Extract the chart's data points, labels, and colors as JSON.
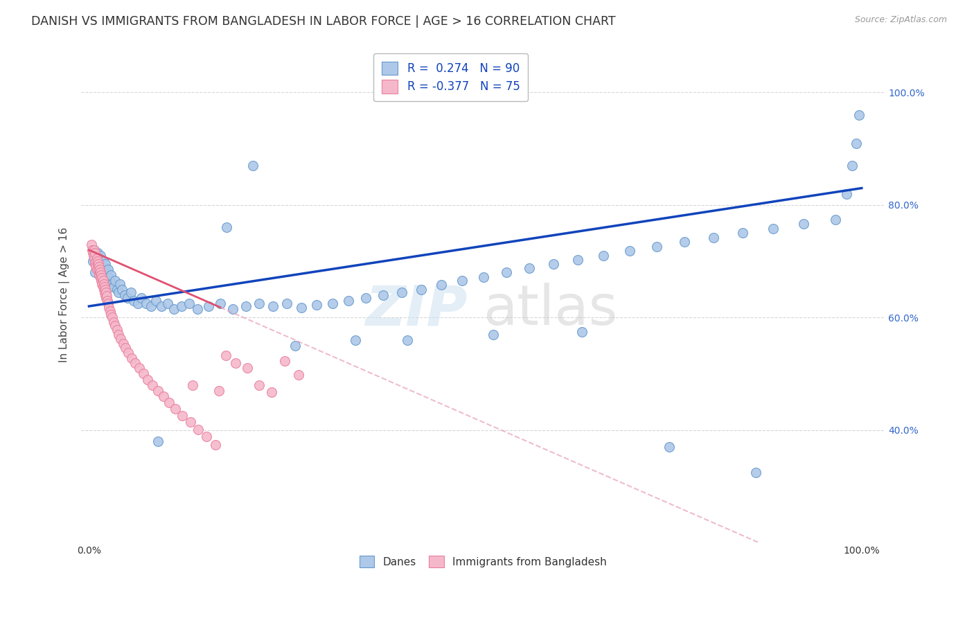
{
  "title": "DANISH VS IMMIGRANTS FROM BANGLADESH IN LABOR FORCE | AGE > 16 CORRELATION CHART",
  "source": "Source: ZipAtlas.com",
  "ylabel": "In Labor Force | Age > 16",
  "ytick_positions": [
    0.4,
    0.6,
    0.8,
    1.0
  ],
  "ytick_labels": [
    "40.0%",
    "60.0%",
    "80.0%",
    "100.0%"
  ],
  "xlim": [
    -0.01,
    1.03
  ],
  "ylim": [
    0.2,
    1.08
  ],
  "legend_label1": "R =  0.274   N = 90",
  "legend_label2": "R = -0.377   N = 75",
  "danes_color": "#adc8e8",
  "danes_edge": "#6699cc",
  "bangladesh_color": "#f5b8cb",
  "bangladesh_edge": "#e8809c",
  "trendline_danes_color": "#1144bb",
  "trendline_bangladesh_solid_color": "#e05070",
  "trendline_bangladesh_dash_color": "#e8a0b8",
  "watermark_zip_color": "#cce0f0",
  "watermark_atlas_color": "#c8c8c8",
  "grid_color": "#cccccc",
  "title_color": "#333333",
  "source_color": "#999999",
  "ylabel_color": "#444444",
  "right_tick_color": "#3366cc",
  "bottom_label_color": "#333333",
  "danes_x": [
    0.005,
    0.007,
    0.008,
    0.009,
    0.01,
    0.011,
    0.012,
    0.013,
    0.014,
    0.015,
    0.015,
    0.016,
    0.017,
    0.018,
    0.019,
    0.02,
    0.021,
    0.022,
    0.023,
    0.025,
    0.026,
    0.027,
    0.028,
    0.03,
    0.032,
    0.034,
    0.036,
    0.038,
    0.04,
    0.043,
    0.046,
    0.05,
    0.054,
    0.058,
    0.063,
    0.068,
    0.074,
    0.08,
    0.087,
    0.094,
    0.102,
    0.11,
    0.12,
    0.13,
    0.14,
    0.155,
    0.17,
    0.186,
    0.203,
    0.22,
    0.238,
    0.256,
    0.275,
    0.295,
    0.315,
    0.336,
    0.358,
    0.381,
    0.405,
    0.43,
    0.456,
    0.483,
    0.511,
    0.54,
    0.57,
    0.601,
    0.633,
    0.666,
    0.7,
    0.735,
    0.771,
    0.808,
    0.846,
    0.885,
    0.925,
    0.966,
    0.98,
    0.988,
    0.993,
    0.997,
    0.212,
    0.345,
    0.178,
    0.089,
    0.267,
    0.412,
    0.523,
    0.638,
    0.751,
    0.863
  ],
  "danes_y": [
    0.7,
    0.72,
    0.68,
    0.71,
    0.695,
    0.715,
    0.7,
    0.685,
    0.705,
    0.69,
    0.71,
    0.695,
    0.675,
    0.7,
    0.685,
    0.69,
    0.695,
    0.675,
    0.68,
    0.685,
    0.67,
    0.665,
    0.675,
    0.66,
    0.655,
    0.665,
    0.65,
    0.645,
    0.66,
    0.65,
    0.64,
    0.635,
    0.645,
    0.63,
    0.625,
    0.635,
    0.625,
    0.62,
    0.63,
    0.62,
    0.625,
    0.615,
    0.62,
    0.625,
    0.615,
    0.62,
    0.625,
    0.615,
    0.62,
    0.625,
    0.62,
    0.625,
    0.618,
    0.622,
    0.625,
    0.63,
    0.635,
    0.64,
    0.645,
    0.65,
    0.658,
    0.665,
    0.672,
    0.68,
    0.688,
    0.695,
    0.703,
    0.71,
    0.718,
    0.726,
    0.734,
    0.742,
    0.75,
    0.758,
    0.766,
    0.774,
    0.82,
    0.87,
    0.91,
    0.96,
    0.87,
    0.56,
    0.76,
    0.38,
    0.55,
    0.56,
    0.57,
    0.575,
    0.37,
    0.325
  ],
  "bangladesh_x": [
    0.003,
    0.004,
    0.005,
    0.006,
    0.007,
    0.007,
    0.008,
    0.008,
    0.009,
    0.009,
    0.01,
    0.01,
    0.011,
    0.011,
    0.012,
    0.012,
    0.013,
    0.013,
    0.014,
    0.014,
    0.015,
    0.015,
    0.016,
    0.016,
    0.017,
    0.017,
    0.018,
    0.018,
    0.019,
    0.019,
    0.02,
    0.02,
    0.021,
    0.021,
    0.022,
    0.022,
    0.023,
    0.024,
    0.025,
    0.026,
    0.027,
    0.028,
    0.03,
    0.032,
    0.034,
    0.036,
    0.038,
    0.041,
    0.044,
    0.047,
    0.051,
    0.055,
    0.06,
    0.065,
    0.07,
    0.076,
    0.082,
    0.089,
    0.096,
    0.104,
    0.112,
    0.121,
    0.131,
    0.141,
    0.152,
    0.164,
    0.177,
    0.19,
    0.205,
    0.22,
    0.236,
    0.253,
    0.271,
    0.134,
    0.168
  ],
  "bangladesh_y": [
    0.73,
    0.72,
    0.715,
    0.71,
    0.705,
    0.72,
    0.695,
    0.715,
    0.7,
    0.69,
    0.685,
    0.705,
    0.695,
    0.7,
    0.685,
    0.695,
    0.675,
    0.69,
    0.68,
    0.685,
    0.67,
    0.68,
    0.665,
    0.675,
    0.66,
    0.67,
    0.655,
    0.665,
    0.65,
    0.66,
    0.645,
    0.655,
    0.64,
    0.65,
    0.635,
    0.645,
    0.638,
    0.63,
    0.625,
    0.618,
    0.612,
    0.605,
    0.6,
    0.592,
    0.585,
    0.578,
    0.57,
    0.562,
    0.554,
    0.546,
    0.537,
    0.528,
    0.519,
    0.51,
    0.5,
    0.49,
    0.48,
    0.47,
    0.46,
    0.449,
    0.438,
    0.426,
    0.414,
    0.401,
    0.388,
    0.374,
    0.532,
    0.519,
    0.51,
    0.48,
    0.467,
    0.523,
    0.498,
    0.48,
    0.47
  ]
}
